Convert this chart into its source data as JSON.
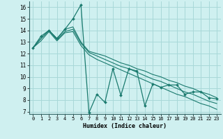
{
  "xlabel": "Humidex (Indice chaleur)",
  "bg_color": "#cff0f0",
  "grid_color": "#a8d8d8",
  "line_color": "#1a7a6e",
  "xlim": [
    -0.5,
    23.5
  ],
  "ylim": [
    6.8,
    16.5
  ],
  "yticks": [
    7,
    8,
    9,
    10,
    11,
    12,
    13,
    14,
    15,
    16
  ],
  "xticks": [
    0,
    1,
    2,
    3,
    4,
    5,
    6,
    7,
    8,
    9,
    10,
    11,
    12,
    13,
    14,
    15,
    16,
    17,
    18,
    19,
    20,
    21,
    22,
    23
  ],
  "series_main": [
    12.5,
    13.5,
    14.0,
    13.3,
    14.1,
    15.0,
    16.2,
    6.9,
    8.5,
    7.8,
    10.7,
    8.4,
    10.7,
    10.5,
    7.5,
    9.4,
    9.1,
    9.3,
    9.3,
    8.5,
    8.7,
    8.7,
    8.2,
    8.1
  ],
  "series_trends": [
    [
      12.5,
      13.3,
      14.0,
      13.3,
      14.1,
      14.3,
      13.0,
      12.2,
      12.0,
      11.8,
      11.5,
      11.2,
      11.0,
      10.7,
      10.5,
      10.2,
      10.0,
      9.7,
      9.5,
      9.2,
      9.0,
      8.7,
      8.5,
      8.2
    ],
    [
      12.5,
      13.3,
      14.0,
      13.2,
      13.9,
      14.1,
      12.9,
      12.1,
      11.8,
      11.5,
      11.2,
      10.9,
      10.7,
      10.4,
      10.1,
      9.8,
      9.6,
      9.3,
      9.0,
      8.7,
      8.5,
      8.2,
      7.9,
      7.7
    ],
    [
      12.5,
      13.1,
      13.9,
      13.1,
      13.8,
      13.9,
      12.7,
      11.9,
      11.5,
      11.2,
      10.9,
      10.6,
      10.3,
      10.0,
      9.7,
      9.4,
      9.1,
      8.8,
      8.5,
      8.3,
      8.0,
      7.7,
      7.5,
      7.2
    ]
  ]
}
